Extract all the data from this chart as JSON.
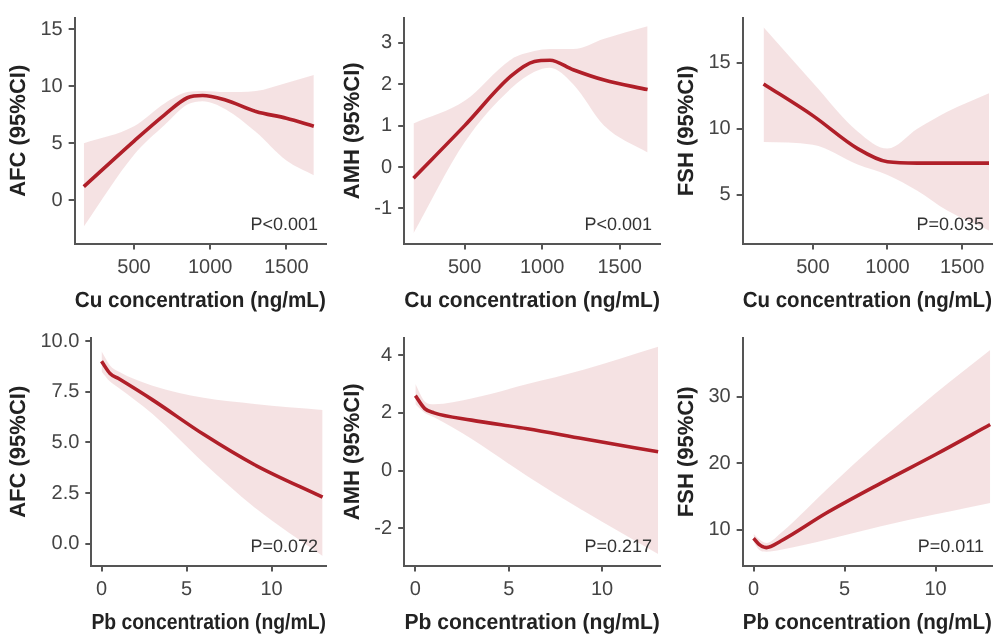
{
  "chart_data": [
    {
      "type": "line",
      "xlabel": "Cu concentration (ng/mL)",
      "ylabel": "AFC (95%CI)",
      "annotations": [
        "P<0.001"
      ],
      "grid": false,
      "legend": false,
      "marker": "none",
      "xlim": [
        110,
        1760
      ],
      "xticks": [
        500,
        1000,
        1500
      ],
      "ylim": [
        -3.8,
        16
      ],
      "yticks": [
        0,
        5,
        10,
        15
      ],
      "series": [
        {
          "color": "#b0202a",
          "x": [
            170,
            500,
            700,
            850,
            950,
            1100,
            1300,
            1500,
            1680
          ],
          "values": [
            1.2,
            5.2,
            7.5,
            9.0,
            9.2,
            8.8,
            7.8,
            7.2,
            6.5
          ],
          "lower": [
            -2.3,
            4.0,
            6.6,
            8.4,
            8.7,
            8.0,
            6.0,
            3.5,
            2.2
          ],
          "upper": [
            5.0,
            6.5,
            8.5,
            9.5,
            9.6,
            9.5,
            9.6,
            10.3,
            11.0
          ]
        }
      ]
    },
    {
      "type": "line",
      "xlabel": "Cu concentration (ng/mL)",
      "ylabel": "AMH (95%CI)",
      "annotations": [
        "P<0.001"
      ],
      "grid": false,
      "legend": false,
      "marker": "none",
      "xlim": [
        110,
        1760
      ],
      "xticks": [
        500,
        1000,
        1500
      ],
      "ylim": [
        -1.85,
        3.6
      ],
      "yticks": [
        -1,
        0,
        1,
        2,
        3
      ],
      "series": [
        {
          "color": "#b0202a",
          "x": [
            170,
            500,
            800,
            950,
            1050,
            1200,
            1400,
            1680
          ],
          "values": [
            -0.27,
            1.0,
            2.2,
            2.55,
            2.58,
            2.35,
            2.1,
            1.87
          ],
          "lower": [
            -1.6,
            0.6,
            1.9,
            2.3,
            2.4,
            2.0,
            1.0,
            0.35
          ],
          "upper": [
            1.05,
            1.6,
            2.6,
            2.8,
            2.85,
            2.85,
            3.1,
            3.4
          ]
        }
      ]
    },
    {
      "type": "line",
      "xlabel": "Cu concentration (ng/mL)",
      "ylabel": "FSH (95%CI)",
      "annotations": [
        "P=0.035"
      ],
      "grid": false,
      "legend": false,
      "marker": "none",
      "xlim": [
        30,
        1700
      ],
      "xticks": [
        500,
        1000,
        1500
      ],
      "ylim": [
        1.3,
        18.4
      ],
      "yticks": [
        5,
        10,
        15
      ],
      "series": [
        {
          "color": "#b0202a",
          "x": [
            170,
            500,
            800,
            1000,
            1200,
            1400,
            1680
          ],
          "values": [
            13.4,
            11.0,
            8.5,
            7.5,
            7.4,
            7.4,
            7.4
          ],
          "lower": [
            9.0,
            8.8,
            7.3,
            6.5,
            5.3,
            3.8,
            2.3
          ],
          "upper": [
            17.7,
            13.5,
            9.8,
            8.5,
            10.0,
            11.3,
            12.7
          ]
        }
      ]
    },
    {
      "type": "line",
      "xlabel": "Pb concentration (ng/mL)",
      "ylabel": "AFC (95%CI)",
      "annotations": [
        "P=0.072"
      ],
      "grid": false,
      "legend": false,
      "marker": "none",
      "xlim": [
        -0.6,
        13.2
      ],
      "xticks": [
        0,
        5,
        10
      ],
      "ylim": [
        -1.07,
        10.15
      ],
      "yticks": [
        {
          "value": 0,
          "label": "0.0"
        },
        {
          "value": 2.5,
          "label": "2.5"
        },
        {
          "value": 5,
          "label": "5.0"
        },
        {
          "value": 7.5,
          "label": "7.5"
        },
        {
          "value": 10,
          "label": "10.0"
        }
      ],
      "series": [
        {
          "color": "#b0202a",
          "x": [
            0,
            0.5,
            1,
            3,
            6,
            9,
            13
          ],
          "values": [
            9.0,
            8.4,
            8.15,
            7.1,
            5.4,
            3.9,
            2.3
          ],
          "lower": [
            8.5,
            8.0,
            7.7,
            6.4,
            4.0,
            1.8,
            -0.6
          ],
          "upper": [
            9.5,
            8.8,
            8.5,
            7.8,
            7.2,
            6.9,
            6.6
          ]
        }
      ]
    },
    {
      "type": "line",
      "xlabel": "Pb concentration (ng/mL)",
      "ylabel": "AMH (95%CI)",
      "annotations": [
        "P=0.217"
      ],
      "grid": false,
      "legend": false,
      "marker": "none",
      "xlim": [
        -0.6,
        13.1
      ],
      "xticks": [
        0,
        5,
        10
      ],
      "ylim": [
        -3.3,
        4.6
      ],
      "yticks": [
        -2,
        0,
        2,
        4
      ],
      "series": [
        {
          "color": "#b0202a",
          "x": [
            0,
            0.5,
            1,
            3,
            6,
            9,
            13
          ],
          "values": [
            2.6,
            2.15,
            2.0,
            1.75,
            1.45,
            1.1,
            0.65
          ],
          "lower": [
            2.3,
            2.0,
            1.85,
            1.1,
            -0.2,
            -1.4,
            -2.9
          ],
          "upper": [
            3.0,
            2.4,
            2.3,
            2.5,
            3.0,
            3.5,
            4.3
          ]
        }
      ]
    },
    {
      "type": "line",
      "xlabel": "Pb concentration (ng/mL)",
      "ylabel": "FSH (95%CI)",
      "annotations": [
        "P=0.011"
      ],
      "grid": false,
      "legend": false,
      "marker": "none",
      "xlim": [
        -0.6,
        13.1
      ],
      "xticks": [
        0,
        5,
        10
      ],
      "ylim": [
        4.6,
        38.8
      ],
      "yticks": [
        10,
        20,
        30
      ],
      "series": [
        {
          "color": "#b0202a",
          "x": [
            0,
            0.3,
            0.7,
            1.5,
            4,
            7,
            10,
            13
          ],
          "values": [
            8.7,
            7.8,
            7.3,
            8.3,
            12.5,
            17.0,
            21.3,
            25.8
          ],
          "lower": [
            8.2,
            7.0,
            6.7,
            7.0,
            8.5,
            10.5,
            12.3,
            14.0
          ],
          "upper": [
            9.4,
            8.6,
            8.0,
            9.5,
            16.0,
            23.5,
            30.5,
            37.0
          ]
        }
      ]
    }
  ]
}
